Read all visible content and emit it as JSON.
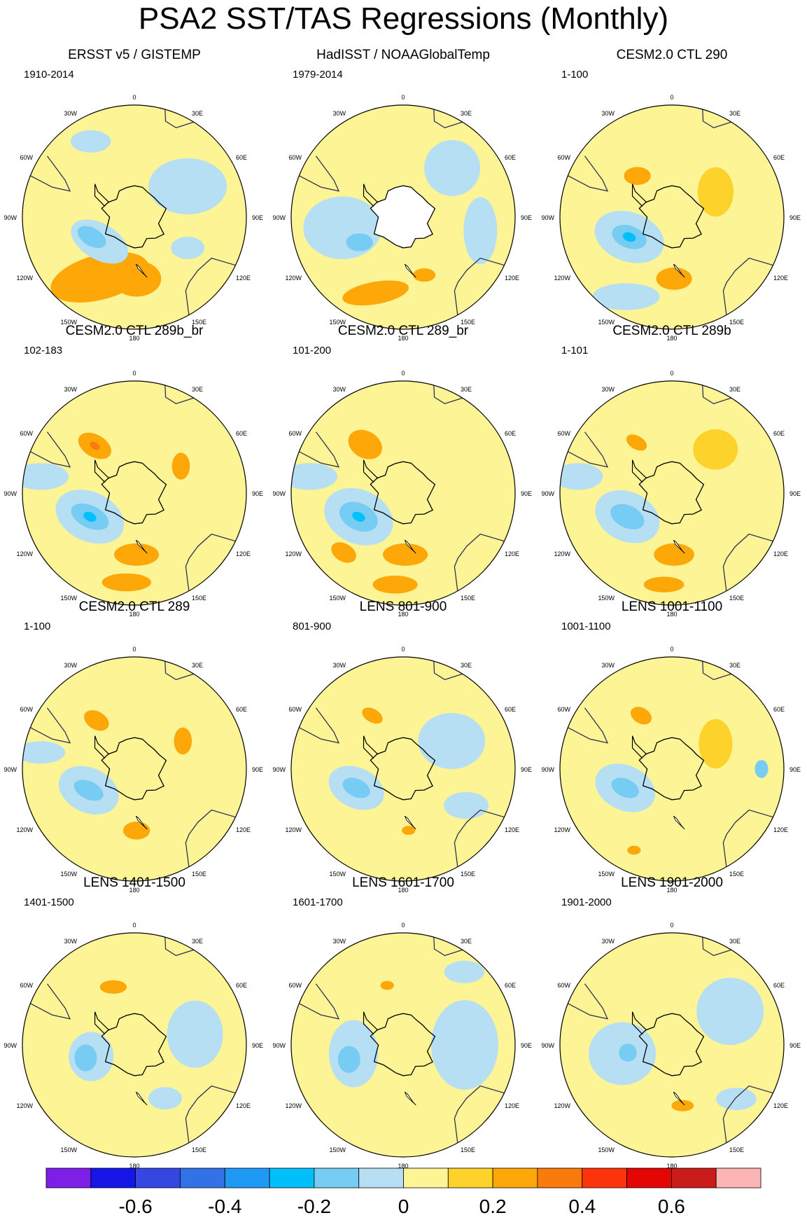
{
  "title": "PSA2 SST/TAS Regressions (Monthly)",
  "chart_data": {
    "type": "heatmap",
    "description_type": "polar-stereographic filled contour maps (Southern Hemisphere)",
    "title": "PSA2 SST/TAS Regressions (Monthly)",
    "longitude_labels": [
      {
        "label": "0",
        "lon": 0
      },
      {
        "label": "30E",
        "lon": 30
      },
      {
        "label": "60E",
        "lon": 60
      },
      {
        "label": "90E",
        "lon": 90
      },
      {
        "label": "120E",
        "lon": 120
      },
      {
        "label": "150E",
        "lon": 150
      },
      {
        "label": "180",
        "lon": 180
      },
      {
        "label": "150W",
        "lon": -150
      },
      {
        "label": "120W",
        "lon": -120
      },
      {
        "label": "90W",
        "lon": -90
      },
      {
        "label": "60W",
        "lon": -60
      },
      {
        "label": "30W",
        "lon": -30
      }
    ],
    "panels": [
      {
        "title": "ERSST v5 / GISTEMP",
        "years": "1910-2014",
        "missing_antarctica": false,
        "features": [
          {
            "lon": -150,
            "r": 0.62,
            "rx": 0.45,
            "ry": 0.2,
            "rot": -15,
            "value": 0.2
          },
          {
            "lon": 178,
            "r": 0.55,
            "rx": 0.22,
            "ry": 0.16,
            "rot": 0,
            "value": 0.2
          },
          {
            "lon": -125,
            "r": 0.38,
            "rx": 0.28,
            "ry": 0.16,
            "rot": 30,
            "value": -0.1
          },
          {
            "lon": -115,
            "r": 0.42,
            "rx": 0.14,
            "ry": 0.08,
            "rot": 30,
            "value": -0.2
          },
          {
            "lon": 60,
            "r": 0.55,
            "rx": 0.35,
            "ry": 0.25,
            "rot": 0,
            "value": -0.1
          },
          {
            "lon": -30,
            "r": 0.78,
            "rx": 0.18,
            "ry": 0.1,
            "rot": 0,
            "value": -0.1
          },
          {
            "lon": 120,
            "r": 0.55,
            "rx": 0.15,
            "ry": 0.1,
            "rot": 0,
            "value": -0.1
          }
        ]
      },
      {
        "title": "HadISST / NOAAGlobalTemp",
        "years": "1979-2014",
        "missing_antarctica": true,
        "features": [
          {
            "lon": -100,
            "r": 0.55,
            "rx": 0.35,
            "ry": 0.28,
            "rot": 0,
            "value": -0.1
          },
          {
            "lon": -120,
            "r": 0.45,
            "rx": 0.12,
            "ry": 0.08,
            "rot": 0,
            "value": -0.2
          },
          {
            "lon": -160,
            "r": 0.72,
            "rx": 0.3,
            "ry": 0.1,
            "rot": -10,
            "value": 0.2
          },
          {
            "lon": 160,
            "r": 0.55,
            "rx": 0.1,
            "ry": 0.06,
            "rot": 0,
            "value": 0.2
          },
          {
            "lon": 45,
            "r": 0.62,
            "rx": 0.25,
            "ry": 0.25,
            "rot": 0,
            "value": -0.1
          },
          {
            "lon": 100,
            "r": 0.7,
            "rx": 0.15,
            "ry": 0.3,
            "rot": 0,
            "value": -0.1
          }
        ]
      },
      {
        "title": "CESM2.0 CTL 290",
        "years": "1-100",
        "missing_antarctica": false,
        "features": [
          {
            "lon": -115,
            "r": 0.42,
            "rx": 0.32,
            "ry": 0.22,
            "rot": 20,
            "value": -0.1
          },
          {
            "lon": -115,
            "r": 0.42,
            "rx": 0.16,
            "ry": 0.1,
            "rot": 20,
            "value": -0.2
          },
          {
            "lon": -115,
            "r": 0.42,
            "rx": 0.06,
            "ry": 0.04,
            "rot": 20,
            "value": -0.3
          },
          {
            "lon": 178,
            "r": 0.55,
            "rx": 0.16,
            "ry": 0.1,
            "rot": 0,
            "value": 0.2
          },
          {
            "lon": -40,
            "r": 0.48,
            "rx": 0.12,
            "ry": 0.08,
            "rot": 0,
            "value": 0.2
          },
          {
            "lon": 60,
            "r": 0.45,
            "rx": 0.16,
            "ry": 0.22,
            "rot": 0,
            "value": 0.1
          },
          {
            "lon": -150,
            "r": 0.82,
            "rx": 0.3,
            "ry": 0.12,
            "rot": 0,
            "value": -0.1
          }
        ]
      },
      {
        "title": "CESM2.0 CTL 289b_br",
        "years": "102-183",
        "missing_antarctica": false,
        "features": [
          {
            "lon": -118,
            "r": 0.45,
            "rx": 0.32,
            "ry": 0.22,
            "rot": 25,
            "value": -0.1
          },
          {
            "lon": -118,
            "r": 0.45,
            "rx": 0.18,
            "ry": 0.1,
            "rot": 25,
            "value": -0.2
          },
          {
            "lon": -118,
            "r": 0.45,
            "rx": 0.06,
            "ry": 0.04,
            "rot": 25,
            "value": -0.3
          },
          {
            "lon": 178,
            "r": 0.55,
            "rx": 0.2,
            "ry": 0.1,
            "rot": 0,
            "value": 0.2
          },
          {
            "lon": -175,
            "r": 0.8,
            "rx": 0.22,
            "ry": 0.08,
            "rot": 0,
            "value": 0.2
          },
          {
            "lon": -40,
            "r": 0.55,
            "rx": 0.16,
            "ry": 0.1,
            "rot": 30,
            "value": 0.2
          },
          {
            "lon": -40,
            "r": 0.55,
            "rx": 0.05,
            "ry": 0.03,
            "rot": 30,
            "value": 0.3
          },
          {
            "lon": 60,
            "r": 0.48,
            "rx": 0.08,
            "ry": 0.12,
            "rot": 0,
            "value": 0.2
          },
          {
            "lon": -80,
            "r": 0.85,
            "rx": 0.25,
            "ry": 0.12,
            "rot": 0,
            "value": -0.1
          }
        ]
      },
      {
        "title": "CESM2.0 CTL 289_br",
        "years": "101-200",
        "missing_antarctica": false,
        "features": [
          {
            "lon": -118,
            "r": 0.45,
            "rx": 0.32,
            "ry": 0.24,
            "rot": 25,
            "value": -0.1
          },
          {
            "lon": -118,
            "r": 0.45,
            "rx": 0.18,
            "ry": 0.12,
            "rot": 25,
            "value": -0.2
          },
          {
            "lon": -118,
            "r": 0.45,
            "rx": 0.06,
            "ry": 0.04,
            "rot": 25,
            "value": -0.3
          },
          {
            "lon": 178,
            "r": 0.55,
            "rx": 0.2,
            "ry": 0.1,
            "rot": 0,
            "value": 0.2
          },
          {
            "lon": -175,
            "r": 0.82,
            "rx": 0.2,
            "ry": 0.08,
            "rot": 0,
            "value": 0.2
          },
          {
            "lon": -38,
            "r": 0.55,
            "rx": 0.16,
            "ry": 0.12,
            "rot": 30,
            "value": 0.2
          },
          {
            "lon": -135,
            "r": 0.75,
            "rx": 0.12,
            "ry": 0.08,
            "rot": 30,
            "value": 0.2
          },
          {
            "lon": -80,
            "r": 0.85,
            "rx": 0.25,
            "ry": 0.12,
            "rot": 0,
            "value": -0.1
          }
        ]
      },
      {
        "title": "CESM2.0 CTL 289b",
        "years": "1-101",
        "missing_antarctica": false,
        "features": [
          {
            "lon": -118,
            "r": 0.45,
            "rx": 0.3,
            "ry": 0.22,
            "rot": 25,
            "value": -0.1
          },
          {
            "lon": -118,
            "r": 0.45,
            "rx": 0.16,
            "ry": 0.1,
            "rot": 25,
            "value": -0.2
          },
          {
            "lon": 178,
            "r": 0.55,
            "rx": 0.18,
            "ry": 0.1,
            "rot": 0,
            "value": 0.2
          },
          {
            "lon": -175,
            "r": 0.82,
            "rx": 0.18,
            "ry": 0.07,
            "rot": 0,
            "value": 0.2
          },
          {
            "lon": -35,
            "r": 0.55,
            "rx": 0.1,
            "ry": 0.06,
            "rot": 30,
            "value": 0.2
          },
          {
            "lon": 45,
            "r": 0.55,
            "rx": 0.2,
            "ry": 0.18,
            "rot": 0,
            "value": 0.1
          },
          {
            "lon": -80,
            "r": 0.85,
            "rx": 0.22,
            "ry": 0.12,
            "rot": 0,
            "value": -0.1
          }
        ]
      },
      {
        "title": "CESM2.0 CTL 289",
        "years": "1-100",
        "missing_antarctica": false,
        "features": [
          {
            "lon": -115,
            "r": 0.45,
            "rx": 0.28,
            "ry": 0.2,
            "rot": 25,
            "value": -0.1
          },
          {
            "lon": -115,
            "r": 0.45,
            "rx": 0.14,
            "ry": 0.08,
            "rot": 25,
            "value": -0.2
          },
          {
            "lon": 178,
            "r": 0.55,
            "rx": 0.12,
            "ry": 0.08,
            "rot": 0,
            "value": 0.2
          },
          {
            "lon": -38,
            "r": 0.55,
            "rx": 0.12,
            "ry": 0.08,
            "rot": 30,
            "value": 0.2
          },
          {
            "lon": 60,
            "r": 0.5,
            "rx": 0.08,
            "ry": 0.12,
            "rot": 0,
            "value": 0.2
          },
          {
            "lon": -80,
            "r": 0.85,
            "rx": 0.22,
            "ry": 0.1,
            "rot": 0,
            "value": -0.1
          }
        ]
      },
      {
        "title": "LENS 801-900",
        "years": "801-900",
        "missing_antarctica": false,
        "features": [
          {
            "lon": -112,
            "r": 0.45,
            "rx": 0.26,
            "ry": 0.18,
            "rot": 25,
            "value": -0.1
          },
          {
            "lon": -112,
            "r": 0.45,
            "rx": 0.13,
            "ry": 0.08,
            "rot": 25,
            "value": -0.2
          },
          {
            "lon": -30,
            "r": 0.55,
            "rx": 0.1,
            "ry": 0.06,
            "rot": 30,
            "value": 0.2
          },
          {
            "lon": 175,
            "r": 0.55,
            "rx": 0.06,
            "ry": 0.04,
            "rot": 0,
            "value": 0.2
          },
          {
            "lon": 60,
            "r": 0.5,
            "rx": 0.3,
            "ry": 0.25,
            "rot": 0,
            "value": -0.1
          },
          {
            "lon": 120,
            "r": 0.65,
            "rx": 0.2,
            "ry": 0.12,
            "rot": 0,
            "value": -0.1
          }
        ]
      },
      {
        "title": "LENS 1001-1100",
        "years": "1001-1100",
        "missing_antarctica": false,
        "features": [
          {
            "lon": -112,
            "r": 0.45,
            "rx": 0.28,
            "ry": 0.2,
            "rot": 25,
            "value": -0.1
          },
          {
            "lon": -112,
            "r": 0.45,
            "rx": 0.13,
            "ry": 0.08,
            "rot": 25,
            "value": -0.2
          },
          {
            "lon": -30,
            "r": 0.55,
            "rx": 0.1,
            "ry": 0.07,
            "rot": 30,
            "value": 0.2
          },
          {
            "lon": -155,
            "r": 0.8,
            "rx": 0.06,
            "ry": 0.04,
            "rot": 0,
            "value": 0.2
          },
          {
            "lon": 60,
            "r": 0.45,
            "rx": 0.15,
            "ry": 0.22,
            "rot": 0,
            "value": 0.1
          },
          {
            "lon": 90,
            "r": 0.8,
            "rx": 0.06,
            "ry": 0.08,
            "rot": 0,
            "value": -0.2
          }
        ]
      },
      {
        "title": "LENS 1401-1500",
        "years": "1401-1500",
        "missing_antarctica": false,
        "features": [
          {
            "lon": -105,
            "r": 0.4,
            "rx": 0.2,
            "ry": 0.22,
            "rot": 0,
            "value": -0.1
          },
          {
            "lon": -105,
            "r": 0.45,
            "rx": 0.1,
            "ry": 0.12,
            "rot": 0,
            "value": -0.2
          },
          {
            "lon": -20,
            "r": 0.55,
            "rx": 0.12,
            "ry": 0.06,
            "rot": 0,
            "value": 0.2
          },
          {
            "lon": 80,
            "r": 0.55,
            "rx": 0.25,
            "ry": 0.3,
            "rot": 0,
            "value": -0.1
          },
          {
            "lon": 150,
            "r": 0.55,
            "rx": 0.15,
            "ry": 0.1,
            "rot": 0,
            "value": -0.1
          }
        ]
      },
      {
        "title": "LENS 1601-1700",
        "years": "1601-1700",
        "missing_antarctica": false,
        "features": [
          {
            "lon": -100,
            "r": 0.45,
            "rx": 0.22,
            "ry": 0.3,
            "rot": 0,
            "value": -0.1
          },
          {
            "lon": -105,
            "r": 0.5,
            "rx": 0.1,
            "ry": 0.12,
            "rot": 0,
            "value": -0.2
          },
          {
            "lon": -15,
            "r": 0.55,
            "rx": 0.06,
            "ry": 0.04,
            "rot": 0,
            "value": 0.2
          },
          {
            "lon": 90,
            "r": 0.55,
            "rx": 0.3,
            "ry": 0.4,
            "rot": 0,
            "value": -0.1
          },
          {
            "lon": 40,
            "r": 0.85,
            "rx": 0.18,
            "ry": 0.1,
            "rot": 0,
            "value": -0.1
          }
        ]
      },
      {
        "title": "LENS 1901-2000",
        "years": "1901-2000",
        "missing_antarctica": false,
        "features": [
          {
            "lon": -100,
            "r": 0.45,
            "rx": 0.3,
            "ry": 0.28,
            "rot": 0,
            "value": -0.1
          },
          {
            "lon": -100,
            "r": 0.4,
            "rx": 0.08,
            "ry": 0.08,
            "rot": 0,
            "value": -0.2
          },
          {
            "lon": 170,
            "r": 0.55,
            "rx": 0.1,
            "ry": 0.05,
            "rot": 0,
            "value": 0.2
          },
          {
            "lon": 60,
            "r": 0.6,
            "rx": 0.3,
            "ry": 0.3,
            "rot": 0,
            "value": -0.1
          },
          {
            "lon": 130,
            "r": 0.75,
            "rx": 0.18,
            "ry": 0.1,
            "rot": 0,
            "value": -0.1
          }
        ]
      }
    ],
    "colorbar": {
      "levels": [
        -0.7,
        -0.6,
        -0.5,
        -0.4,
        -0.3,
        -0.2,
        -0.1,
        0,
        0.1,
        0.2,
        0.3,
        0.4,
        0.5,
        0.6,
        0.7
      ],
      "colors": [
        "#7E1FE8",
        "#1515E8",
        "#3547E0",
        "#3372E6",
        "#1E9AF5",
        "#00BFFA",
        "#76CCF2",
        "#B7DFF3",
        "#FDF495",
        "#FDD22A",
        "#FDA808",
        "#FB7A0C",
        "#FC340C",
        "#E40505",
        "#CB1C1C",
        "#FBB5B5"
      ],
      "tick_labels": [
        "-0.6",
        "-0.4",
        "-0.2",
        "0",
        "0.2",
        "0.4",
        "0.6"
      ],
      "tick_values": [
        -0.6,
        -0.4,
        -0.2,
        0,
        0.2,
        0.4,
        0.6
      ]
    },
    "base_colors": {
      "background": "#FDF495",
      "land_edge": "#000000",
      "coast": "#8A8A9A",
      "missing": "#FFFFFF"
    }
  }
}
